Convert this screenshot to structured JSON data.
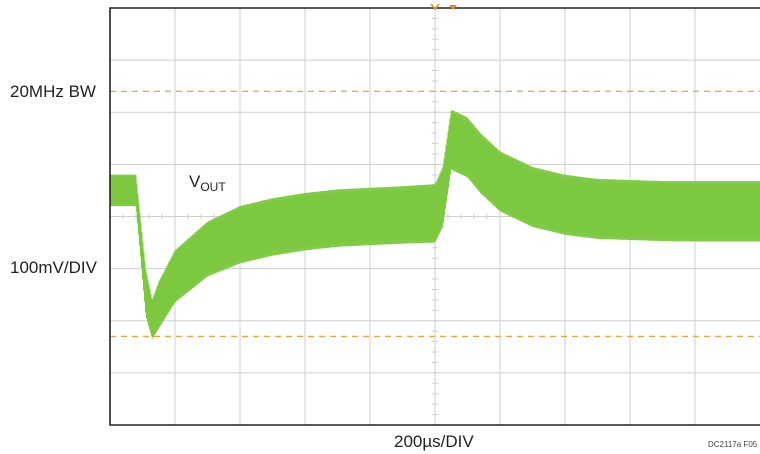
{
  "labels": {
    "bandwidth": "20MHz BW",
    "vertical_scale": "100mV/DIV",
    "horizontal_scale": "200µs/DIV",
    "figure_code": "DC2117a F05"
  },
  "trace": {
    "name_main": "V",
    "name_sub": "OUT",
    "color": "#7cc940"
  },
  "colors": {
    "grid": "#cfcfcf",
    "frame": "#222222",
    "cursor": "#f0a040",
    "trigger_marker": "#e0902a"
  },
  "chart_data": {
    "type": "line",
    "title": "",
    "xlabel": "200µs/DIV",
    "ylabel": "100mV/DIV",
    "divisions": {
      "x": 10,
      "y": 8
    },
    "xlim": [
      0,
      10
    ],
    "ylim": [
      0,
      8
    ],
    "x_unit": "divisions",
    "y_unit": "divisions",
    "cursors_y": [
      6.4,
      1.7
    ],
    "ripple_amplitude_div": 0.5,
    "series": [
      {
        "name": "VOUT",
        "x": [
          0.0,
          0.4,
          0.55,
          0.65,
          0.75,
          1.0,
          1.5,
          2.0,
          2.5,
          3.0,
          3.5,
          4.0,
          4.5,
          5.0,
          5.12,
          5.25,
          5.5,
          5.7,
          6.0,
          6.5,
          7.0,
          7.5,
          8.0,
          8.5,
          9.0,
          9.5,
          10.0
        ],
        "upper": [
          4.8,
          4.8,
          3.0,
          2.4,
          2.75,
          3.35,
          3.9,
          4.2,
          4.35,
          4.45,
          4.52,
          4.55,
          4.58,
          4.62,
          4.95,
          6.05,
          5.9,
          5.6,
          5.25,
          4.95,
          4.8,
          4.72,
          4.7,
          4.68,
          4.68,
          4.68,
          4.68
        ],
        "lower": [
          4.2,
          4.2,
          2.1,
          1.65,
          1.85,
          2.35,
          2.85,
          3.1,
          3.25,
          3.35,
          3.42,
          3.45,
          3.48,
          3.5,
          3.8,
          4.9,
          4.75,
          4.45,
          4.1,
          3.8,
          3.65,
          3.57,
          3.55,
          3.53,
          3.52,
          3.52,
          3.52
        ]
      }
    ]
  }
}
